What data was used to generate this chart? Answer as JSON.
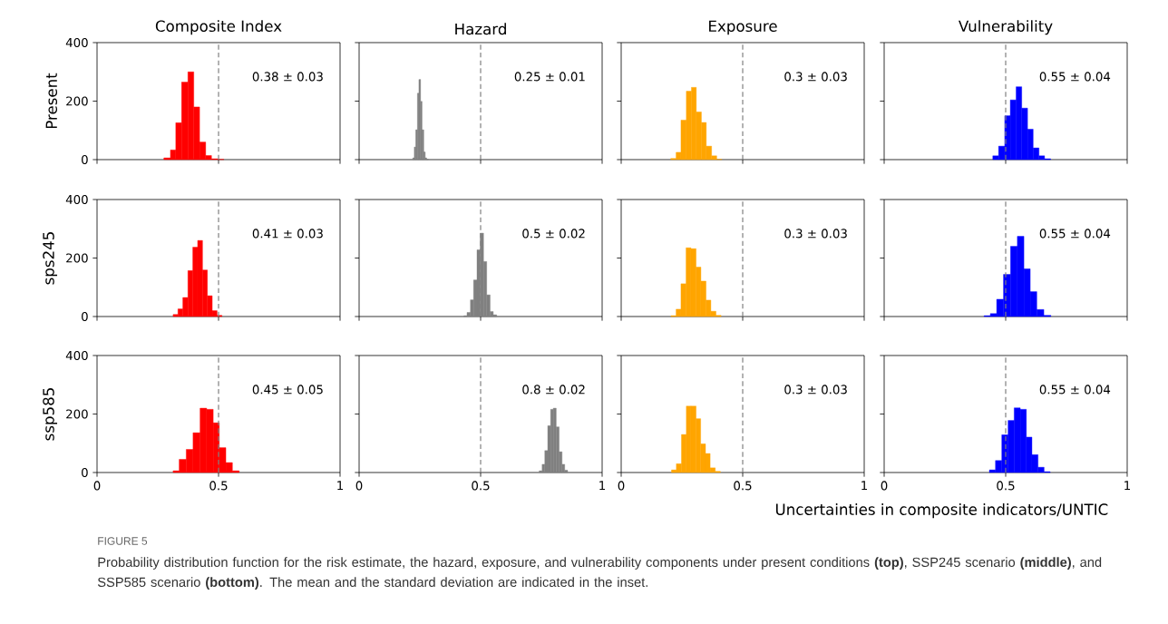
{
  "chart_data": [
    {
      "type": "histogram",
      "title": "Composite Index",
      "ylabel": "Present",
      "color": "#ff0000",
      "bins": [
        0.275,
        0.302,
        0.324,
        0.348,
        0.374,
        0.398,
        0.422,
        0.447,
        0.471,
        0.498,
        0.522
      ],
      "values": [
        6,
        33,
        126,
        265,
        300,
        180,
        60,
        14,
        3,
        1
      ],
      "xlim": [
        0,
        1
      ],
      "ylim": [
        0,
        400
      ],
      "xticks": [
        0,
        0.5,
        1
      ],
      "yticks": [
        0,
        200,
        400
      ],
      "tick_labels": "y",
      "ref_lines": [
        {
          "axis": "x",
          "value": 0.5,
          "color": "#808080",
          "line_style": "dashed"
        }
      ],
      "annotations": [
        "0.38 ± 0.03"
      ]
    },
    {
      "type": "histogram",
      "title": "Hazard",
      "color": "#808080",
      "bins": [
        0.221,
        0.227,
        0.233,
        0.24,
        0.246,
        0.253,
        0.259,
        0.266,
        0.272,
        0.278,
        0.285
      ],
      "values": [
        6,
        43,
        102,
        227,
        274,
        199,
        102,
        26,
        6,
        1
      ],
      "xlim": [
        0,
        1
      ],
      "ylim": [
        0,
        400
      ],
      "xticks": [
        0,
        0.5,
        1
      ],
      "yticks": [
        0,
        200,
        400
      ],
      "tick_labels": false,
      "ref_lines": [
        {
          "axis": "x",
          "value": 0.5,
          "color": "#808080",
          "line_style": "dashed"
        }
      ],
      "annotations": [
        "0.25 ± 0.01"
      ]
    },
    {
      "type": "histogram",
      "title": "Exposure",
      "color": "#ffa500",
      "bins": [
        0.204,
        0.226,
        0.246,
        0.268,
        0.289,
        0.309,
        0.33,
        0.35,
        0.372,
        0.393,
        0.414
      ],
      "values": [
        4,
        25,
        135,
        234,
        247,
        163,
        127,
        46,
        13,
        1
      ],
      "xlim": [
        0,
        1
      ],
      "ylim": [
        0,
        400
      ],
      "xticks": [
        0,
        0.5,
        1
      ],
      "yticks": [
        0,
        200,
        400
      ],
      "tick_labels": false,
      "ref_lines": [
        {
          "axis": "x",
          "value": 0.5,
          "color": "#808080",
          "line_style": "dashed"
        }
      ],
      "annotations": [
        "0.3 ± 0.03"
      ]
    },
    {
      "type": "histogram",
      "title": "Vulnerability",
      "color": "#0000ff",
      "bins": [
        0.447,
        0.471,
        0.496,
        0.519,
        0.543,
        0.566,
        0.59,
        0.613,
        0.637,
        0.66,
        0.685
      ],
      "values": [
        13,
        46,
        150,
        204,
        249,
        176,
        104,
        40,
        13,
        3
      ],
      "xlim": [
        0,
        1
      ],
      "ylim": [
        0,
        400
      ],
      "xticks": [
        0,
        0.5,
        1
      ],
      "yticks": [
        0,
        200,
        400
      ],
      "tick_labels": false,
      "ref_lines": [
        {
          "axis": "x",
          "value": 0.5,
          "color": "#808080",
          "line_style": "dashed"
        }
      ],
      "annotations": [
        "0.55 ± 0.04"
      ]
    },
    {
      "type": "histogram",
      "ylabel": "sps245",
      "color": "#ff0000",
      "bins": [
        0.313,
        0.333,
        0.353,
        0.374,
        0.394,
        0.414,
        0.434,
        0.454,
        0.474,
        0.494,
        0.514
      ],
      "values": [
        7,
        26,
        65,
        157,
        237,
        260,
        159,
        71,
        20,
        4
      ],
      "xlim": [
        0,
        1
      ],
      "ylim": [
        0,
        400
      ],
      "xticks": [
        0,
        0.5,
        1
      ],
      "yticks": [
        0,
        200,
        400
      ],
      "tick_labels": "y",
      "ref_lines": [
        {
          "axis": "x",
          "value": 0.5,
          "color": "#808080",
          "line_style": "dashed"
        }
      ],
      "annotations": [
        "0.41 ± 0.03"
      ]
    },
    {
      "type": "histogram",
      "color": "#808080",
      "bins": [
        0.431,
        0.444,
        0.458,
        0.471,
        0.485,
        0.498,
        0.512,
        0.525,
        0.539,
        0.552,
        0.566
      ],
      "values": [
        3,
        14,
        57,
        125,
        228,
        285,
        188,
        74,
        17,
        6
      ],
      "xlim": [
        0,
        1
      ],
      "ylim": [
        0,
        400
      ],
      "xticks": [
        0,
        0.5,
        1
      ],
      "yticks": [
        0,
        200,
        400
      ],
      "tick_labels": false,
      "ref_lines": [
        {
          "axis": "x",
          "value": 0.5,
          "color": "#808080",
          "line_style": "dashed"
        }
      ],
      "annotations": [
        "0.5 ± 0.02"
      ]
    },
    {
      "type": "histogram",
      "color": "#ffa500",
      "bins": [
        0.205,
        0.226,
        0.246,
        0.267,
        0.287,
        0.308,
        0.328,
        0.349,
        0.369,
        0.39,
        0.411
      ],
      "values": [
        3,
        25,
        112,
        235,
        232,
        169,
        121,
        56,
        18,
        4
      ],
      "xlim": [
        0,
        1
      ],
      "ylim": [
        0,
        400
      ],
      "xticks": [
        0,
        0.5,
        1
      ],
      "yticks": [
        0,
        200,
        400
      ],
      "tick_labels": false,
      "ref_lines": [
        {
          "axis": "x",
          "value": 0.5,
          "color": "#808080",
          "line_style": "dashed"
        }
      ],
      "annotations": [
        "0.3 ± 0.03"
      ]
    },
    {
      "type": "histogram",
      "color": "#0000ff",
      "bins": [
        0.411,
        0.437,
        0.463,
        0.491,
        0.52,
        0.548,
        0.575,
        0.601,
        0.628,
        0.657,
        0.686
      ],
      "values": [
        3,
        10,
        59,
        144,
        240,
        274,
        163,
        85,
        24,
        4
      ],
      "xlim": [
        0,
        1
      ],
      "ylim": [
        0,
        400
      ],
      "xticks": [
        0,
        0.5,
        1
      ],
      "yticks": [
        0,
        200,
        400
      ],
      "tick_labels": false,
      "ref_lines": [
        {
          "axis": "x",
          "value": 0.5,
          "color": "#808080",
          "line_style": "dashed"
        }
      ],
      "annotations": [
        "0.55 ± 0.04"
      ]
    },
    {
      "type": "histogram",
      "ylabel": "ssp585",
      "color": "#ff0000",
      "bins": [
        0.313,
        0.338,
        0.367,
        0.395,
        0.424,
        0.451,
        0.478,
        0.503,
        0.53,
        0.557,
        0.585
      ],
      "values": [
        6,
        45,
        79,
        136,
        220,
        216,
        170,
        85,
        34,
        6
      ],
      "xlim": [
        0,
        1
      ],
      "ylim": [
        0,
        400
      ],
      "xticks": [
        0,
        0.5,
        1
      ],
      "yticks": [
        0,
        200,
        400
      ],
      "ref_lines": [
        {
          "axis": "x",
          "value": 0.5,
          "color": "#808080",
          "line_style": "dashed"
        }
      ],
      "annotations": [
        "0.45 ± 0.05"
      ]
    },
    {
      "type": "histogram",
      "color": "#808080",
      "bins": [
        0.741,
        0.753,
        0.764,
        0.776,
        0.788,
        0.799,
        0.811,
        0.823,
        0.835,
        0.846,
        0.858
      ],
      "values": [
        6,
        28,
        75,
        160,
        216,
        220,
        156,
        71,
        28,
        8
      ],
      "xlim": [
        0,
        1
      ],
      "ylim": [
        0,
        400
      ],
      "xticks": [
        0,
        0.5,
        1
      ],
      "yticks": [
        0,
        200,
        400
      ],
      "tick_labels": "x",
      "ref_lines": [
        {
          "axis": "x",
          "value": 0.5,
          "color": "#808080",
          "line_style": "dashed"
        }
      ],
      "annotations": [
        "0.8 ± 0.02"
      ]
    },
    {
      "type": "histogram",
      "color": "#ffa500",
      "bins": [
        0.207,
        0.227,
        0.248,
        0.268,
        0.287,
        0.308,
        0.327,
        0.347,
        0.366,
        0.387,
        0.408
      ],
      "values": [
        9,
        30,
        130,
        227,
        227,
        184,
        98,
        65,
        16,
        4
      ],
      "xlim": [
        0,
        1
      ],
      "ylim": [
        0,
        400
      ],
      "xticks": [
        0,
        0.5,
        1
      ],
      "yticks": [
        0,
        200,
        400
      ],
      "tick_labels": "x",
      "ref_lines": [
        {
          "axis": "x",
          "value": 0.5,
          "color": "#808080",
          "line_style": "dashed"
        }
      ],
      "annotations": [
        "0.3 ± 0.03"
      ]
    },
    {
      "type": "histogram",
      "xlabel": "Uncertainties in composite indicators/UNTIC",
      "color": "#0000ff",
      "bins": [
        0.433,
        0.458,
        0.484,
        0.51,
        0.535,
        0.56,
        0.585,
        0.608,
        0.633,
        0.658,
        0.683
      ],
      "values": [
        9,
        41,
        129,
        178,
        221,
        216,
        121,
        61,
        18,
        3
      ],
      "xlim": [
        0,
        1
      ],
      "ylim": [
        0,
        400
      ],
      "xticks": [
        0,
        0.5,
        1
      ],
      "yticks": [
        0,
        200,
        400
      ],
      "tick_labels": "x",
      "ref_lines": [
        {
          "axis": "x",
          "value": 0.5,
          "color": "#808080",
          "line_style": "dashed"
        }
      ],
      "annotations": [
        "0.55 ± 0.04",
        "FIGURE 5",
        "Probability distribution function for the risk estimate, the hazard, exposure, and vulnerability components under present conditions **(top)**, SSP245 scenario **(middle)**, and SSP585 scenario **(bottom)**. The mean and the standard deviation are indicated in the inset."
      ]
    }
  ]
}
